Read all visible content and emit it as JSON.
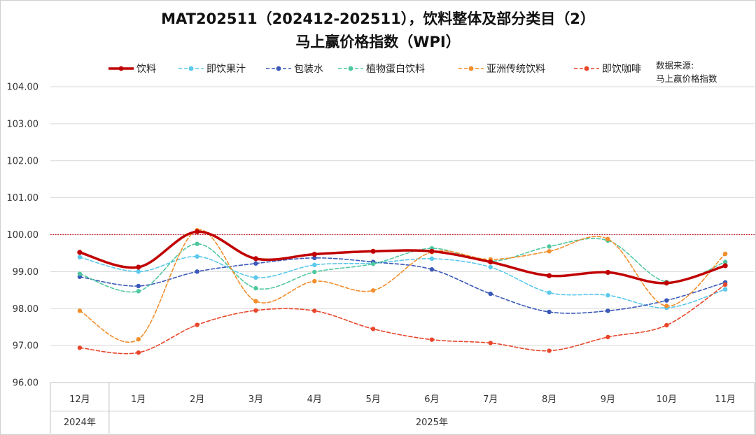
{
  "chart_data": {
    "type": "line",
    "title": "MAT202511（202412-202511），饮料整体及部分类目（2）",
    "subtitle": "马上赢价格指数（WPI）",
    "source_label": "数据来源:",
    "source_name": "马上赢价格指数",
    "categories": [
      "12月",
      "1月",
      "2月",
      "3月",
      "4月",
      "5月",
      "6月",
      "7月",
      "8月",
      "9月",
      "10月",
      "11月"
    ],
    "year_groups": [
      {
        "label": "2024年",
        "span": 1
      },
      {
        "label": "2025年",
        "span": 11
      }
    ],
    "ylim": [
      96,
      104
    ],
    "yticks": [
      "96.00",
      "97.00",
      "98.00",
      "99.00",
      "100.00",
      "101.00",
      "102.00",
      "103.00",
      "104.00"
    ],
    "ytick_values": [
      96,
      97,
      98,
      99,
      100,
      101,
      102,
      103,
      104
    ],
    "reference_line": 100,
    "reference_color": "#d0021b",
    "series": [
      {
        "name": "饮料",
        "color": "#c00000",
        "style": "solid",
        "values": [
          99.52,
          99.12,
          100.08,
          99.35,
          99.47,
          99.55,
          99.55,
          99.26,
          98.89,
          98.98,
          98.69,
          99.16
        ]
      },
      {
        "name": "即饮果汁",
        "color": "#5bc8ec",
        "style": "dashed",
        "values": [
          99.39,
          99.0,
          99.41,
          98.84,
          99.18,
          99.23,
          99.35,
          99.12,
          98.43,
          98.36,
          98.02,
          98.52
        ]
      },
      {
        "name": "包装水",
        "color": "#3a59b8",
        "style": "dashed",
        "values": [
          98.86,
          98.61,
          99.0,
          99.22,
          99.37,
          99.26,
          99.06,
          98.4,
          97.91,
          97.94,
          98.22,
          98.71
        ]
      },
      {
        "name": "植物蛋白饮料",
        "color": "#4fc7a1",
        "style": "dashed",
        "values": [
          98.94,
          98.47,
          99.75,
          98.55,
          98.99,
          99.21,
          99.63,
          99.28,
          99.68,
          99.84,
          98.72,
          99.26
        ]
      },
      {
        "name": "亚洲传统饮料",
        "color": "#f28e2b",
        "style": "dashed",
        "values": [
          97.94,
          97.17,
          100.12,
          98.2,
          98.74,
          98.49,
          99.53,
          99.33,
          99.55,
          99.88,
          98.07,
          99.48
        ]
      },
      {
        "name": "即饮咖啡",
        "color": "#e8462b",
        "style": "dashed",
        "values": [
          96.94,
          96.81,
          97.56,
          97.95,
          97.94,
          97.45,
          97.16,
          97.07,
          96.86,
          97.23,
          97.55,
          98.65
        ]
      }
    ]
  }
}
